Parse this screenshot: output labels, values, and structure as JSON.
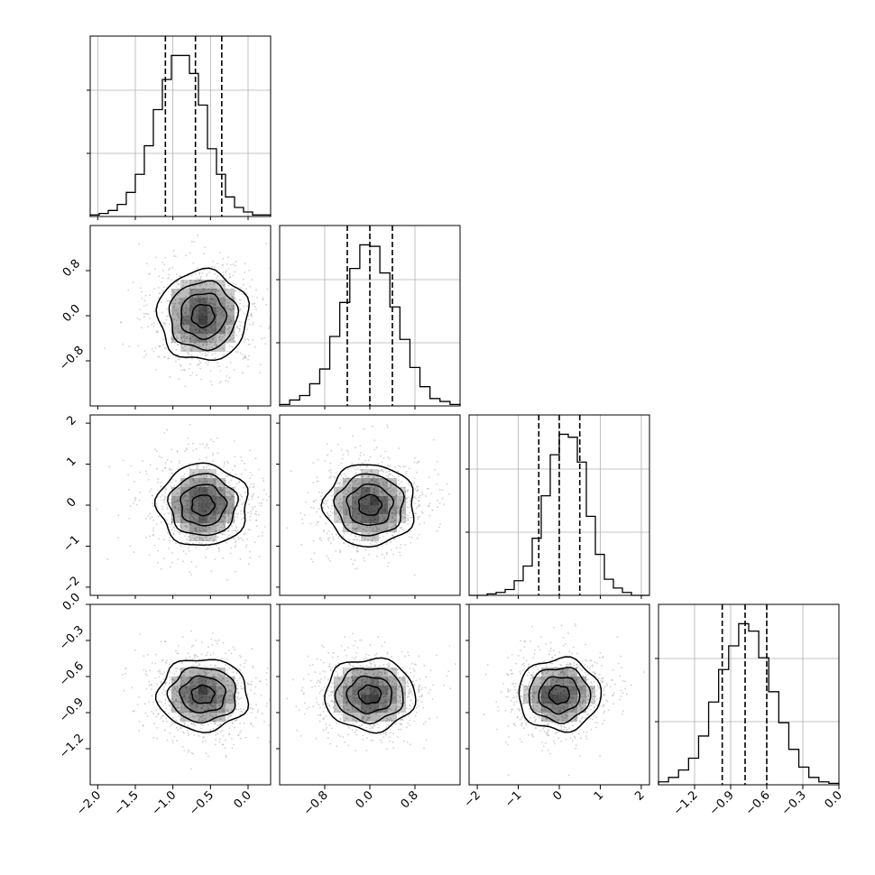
{
  "chart_data": {
    "type": "corner",
    "colors": {
      "line": "#000000",
      "grid": "#b0b0b0",
      "scatter": "#9a9a9a",
      "density": "#000000"
    },
    "grid": true,
    "parameters": [
      {
        "id": "p0",
        "mean": -0.6,
        "sd": 0.3,
        "range": [
          -2.1,
          0.3
        ],
        "ticks": [
          -2.0,
          -1.5,
          -1.0,
          -0.5,
          0.0
        ],
        "tick_labels": [
          "−2.0",
          "−1.5",
          "−1.0",
          "−0.5",
          "0.0"
        ],
        "quantiles": [
          -1.1,
          -0.7,
          -0.35
        ],
        "show_x_labels": true,
        "show_y_labels": false
      },
      {
        "id": "p1",
        "mean": 0.0,
        "sd": 0.4,
        "range": [
          -1.6,
          1.6
        ],
        "ticks": [
          -0.8,
          0.0,
          0.8
        ],
        "tick_labels": [
          "−0.8",
          "0.0",
          "0.8"
        ],
        "quantiles": [
          -0.4,
          0.0,
          0.4
        ],
        "show_x_labels": true,
        "show_y_labels": true
      },
      {
        "id": "p2",
        "mean": 0.0,
        "sd": 0.5,
        "range": [
          -2.2,
          2.2
        ],
        "ticks": [
          -2,
          -1,
          0,
          1,
          2
        ],
        "tick_labels": [
          "−2",
          "−1",
          "0",
          "1",
          "2"
        ],
        "quantiles": [
          -0.5,
          0.0,
          0.5
        ],
        "show_x_labels": true,
        "show_y_labels": true
      },
      {
        "id": "p3",
        "mean": -0.75,
        "sd": 0.15,
        "range": [
          -1.5,
          0.0
        ],
        "ticks": [
          -1.2,
          -0.9,
          -0.6,
          -0.3,
          0.0
        ],
        "tick_labels": [
          "−1.2",
          "−0.9",
          "−0.6",
          "−0.3",
          "0.0"
        ],
        "quantiles": [
          -0.97,
          -0.78,
          -0.6
        ],
        "show_x_labels": true,
        "show_y_labels": true
      }
    ],
    "histograms": [
      {
        "param": "p0",
        "counts": [
          1,
          2,
          4,
          8,
          16,
          28,
          47,
          71,
          91,
          107,
          107,
          95,
          74,
          45,
          28,
          13,
          6,
          3,
          1,
          1
        ]
      },
      {
        "param": "p1",
        "counts": [
          1,
          4,
          7,
          15,
          25,
          47,
          70,
          93,
          109,
          108,
          90,
          67,
          45,
          26,
          13,
          5,
          3,
          1
        ]
      },
      {
        "param": "p2",
        "counts": [
          0,
          0,
          1,
          2,
          4,
          10,
          20,
          39,
          68,
          96,
          110,
          108,
          91,
          54,
          28,
          11,
          5,
          2,
          0,
          0
        ]
      },
      {
        "param": "p3",
        "counts": [
          2,
          5,
          10,
          18,
          33,
          56,
          78,
          94,
          109,
          104,
          86,
          63,
          42,
          24,
          12,
          5,
          2,
          1
        ]
      }
    ],
    "pairs": [
      {
        "x": "p0",
        "y": "p1"
      },
      {
        "x": "p0",
        "y": "p2"
      },
      {
        "x": "p1",
        "y": "p2"
      },
      {
        "x": "p0",
        "y": "p3"
      },
      {
        "x": "p1",
        "y": "p3"
      },
      {
        "x": "p2",
        "y": "p3"
      }
    ]
  }
}
